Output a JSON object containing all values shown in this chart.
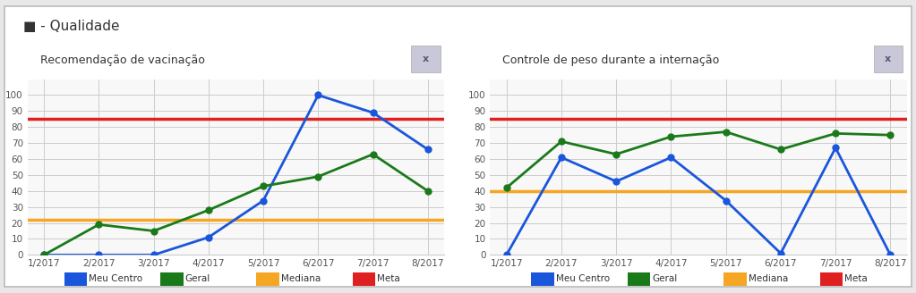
{
  "title": "- Qualidade",
  "title_icon": "◼",
  "x_labels": [
    "1/2017",
    "2/2017",
    "3/2017",
    "4/2017",
    "5/2017",
    "6/2017",
    "7/2017",
    "8/2017"
  ],
  "chart1": {
    "title": "Recomendação de vacinação",
    "meu_centro": [
      0,
      0,
      0,
      11,
      34,
      100,
      89,
      66
    ],
    "geral": [
      0,
      19,
      15,
      28,
      43,
      49,
      63,
      40
    ],
    "mediana": 22,
    "meta": 85,
    "ylim": [
      0,
      110
    ],
    "yticks": [
      0,
      10,
      20,
      30,
      40,
      50,
      60,
      70,
      80,
      90,
      100
    ]
  },
  "chart2": {
    "title": "Controle de peso durante a internação",
    "meu_centro": [
      0,
      61,
      46,
      61,
      34,
      1,
      67,
      0
    ],
    "geral": [
      42,
      71,
      63,
      74,
      77,
      66,
      76,
      75
    ],
    "mediana": 40,
    "meta": 85,
    "ylim": [
      0,
      110
    ],
    "yticks": [
      0,
      10,
      20,
      30,
      40,
      50,
      60,
      70,
      80,
      90,
      100
    ]
  },
  "colors": {
    "meu_centro": "#1a56db",
    "geral": "#1a7a1a",
    "mediana": "#f5a623",
    "meta": "#e02020",
    "background": "#ffffff",
    "panel_bg": "#f8f8f8",
    "grid": "#cccccc",
    "title_bg": "#f0f0f0",
    "border": "#cccccc"
  },
  "legend_labels": [
    "Meu Centro",
    "Geral",
    "Mediana",
    "Meta"
  ]
}
